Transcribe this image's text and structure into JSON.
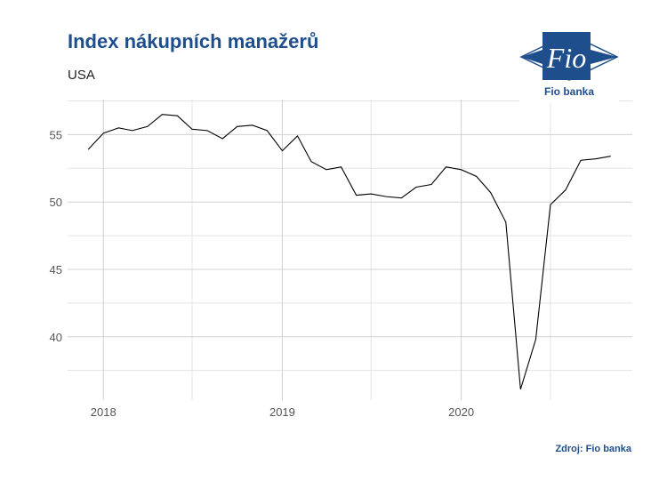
{
  "chart_data": {
    "type": "line",
    "title": "Index nákupních manažerů",
    "subtitle": "USA",
    "xlabel": "",
    "ylabel": "",
    "source": "Zdroj: Fio banka",
    "x_ticks": [
      "2018",
      "2019",
      "2020"
    ],
    "y_ticks": [
      40,
      45,
      50,
      55
    ],
    "xlim": [
      "2017-10-20",
      "2020-12-15"
    ],
    "ylim": [
      35.3,
      57.6
    ],
    "grid": true,
    "legend": "none",
    "line_color": "#000000",
    "series": [
      {
        "x": [
          "2017-12",
          "2018-01",
          "2018-02",
          "2018-03",
          "2018-04",
          "2018-05",
          "2018-06",
          "2018-07",
          "2018-08",
          "2018-09",
          "2018-10",
          "2018-11",
          "2018-12",
          "2019-01",
          "2019-02",
          "2019-03",
          "2019-04",
          "2019-05",
          "2019-06",
          "2019-07",
          "2019-08",
          "2019-09",
          "2019-10",
          "2019-11",
          "2019-12",
          "2020-01",
          "2020-02",
          "2020-03",
          "2020-04",
          "2020-05",
          "2020-06",
          "2020-07",
          "2020-08",
          "2020-09",
          "2020-10",
          "2020-11",
          "2020-12"
        ],
        "values": [
          53.9,
          55.1,
          55.5,
          55.3,
          55.6,
          56.5,
          56.4,
          55.4,
          55.3,
          54.7,
          55.6,
          55.7,
          55.3,
          53.8,
          54.9,
          53.0,
          52.4,
          52.6,
          50.5,
          50.6,
          50.4,
          50.3,
          51.1,
          51.3,
          52.6,
          52.4,
          51.9,
          50.7,
          48.5,
          36.1,
          39.8,
          49.8,
          50.9,
          53.1,
          53.2,
          53.4,
          null
        ]
      }
    ]
  },
  "logo": {
    "text": "Fio banka",
    "glyph": "Fio",
    "color": "#1f4e8c"
  }
}
